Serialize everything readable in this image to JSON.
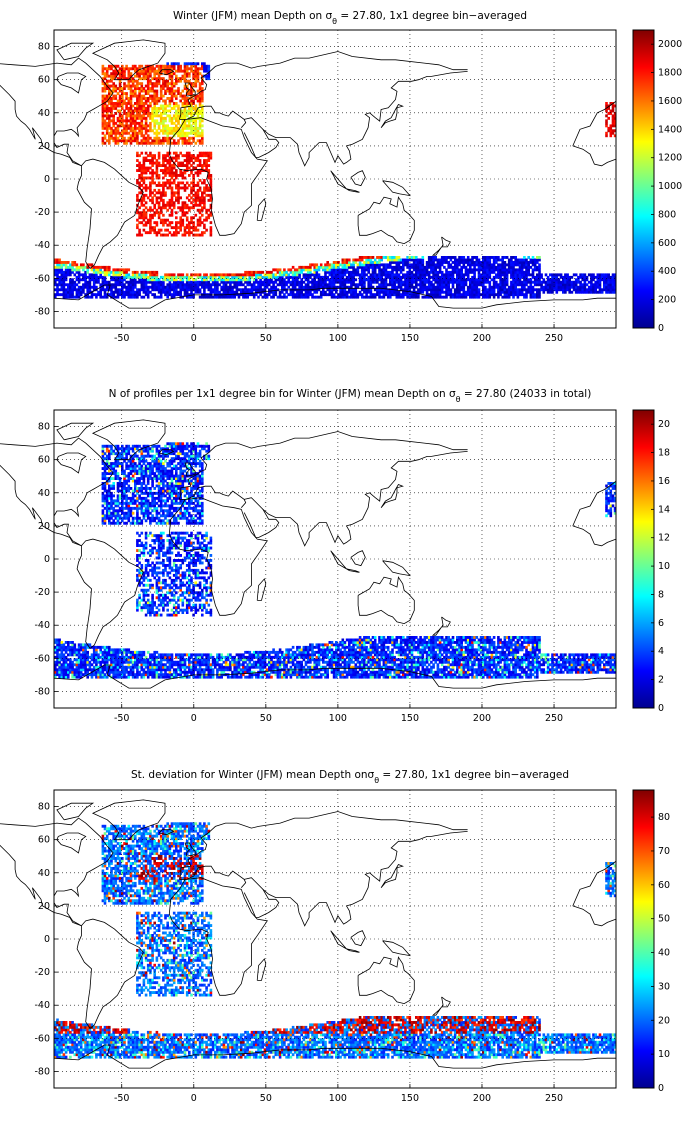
{
  "figure": {
    "panels": [
      {
        "id": "depth",
        "title_prefix": "Winter (JFM) mean Depth on σ",
        "title_sub": "θ",
        "title_suffix": " = 27.80, 1x1 degree bin−averaged",
        "colorbar_ticks": [
          "2000",
          "1800",
          "1600",
          "1400",
          "1200",
          "1000",
          "800",
          "600",
          "400",
          "200",
          "0"
        ],
        "colorbar_range": [
          0,
          2100
        ]
      },
      {
        "id": "count",
        "title_prefix": "N of profiles per 1x1 degree bin for Winter (JFM) mean Depth on σ",
        "title_sub": "θ",
        "title_suffix": " = 27.80 (24033 in total)",
        "colorbar_ticks": [
          "20",
          "18",
          "16",
          "14",
          "12",
          "10",
          "8",
          "6",
          "4",
          "2",
          "0"
        ],
        "colorbar_range": [
          0,
          21
        ]
      },
      {
        "id": "stdev",
        "title_prefix": "St. deviation for Winter (JFM) mean Depth onσ",
        "title_sub": "θ",
        "title_suffix": " = 27.80, 1x1 degree bin−averaged",
        "colorbar_ticks": [
          "80",
          "70",
          "60",
          "50",
          "40",
          "30",
          "20",
          "10",
          "0"
        ],
        "colorbar_range": [
          0,
          88
        ]
      }
    ],
    "x_ticks": [
      "-50",
      "0",
      "50",
      "100",
      "150",
      "200",
      "250"
    ],
    "y_ticks": [
      "80",
      "60",
      "40",
      "20",
      "0",
      "-20",
      "-40",
      "-60",
      "-80"
    ],
    "x_range": [
      -97,
      293
    ],
    "y_range": [
      -90,
      90
    ],
    "colormap": "jet",
    "grid": "dotted"
  }
}
